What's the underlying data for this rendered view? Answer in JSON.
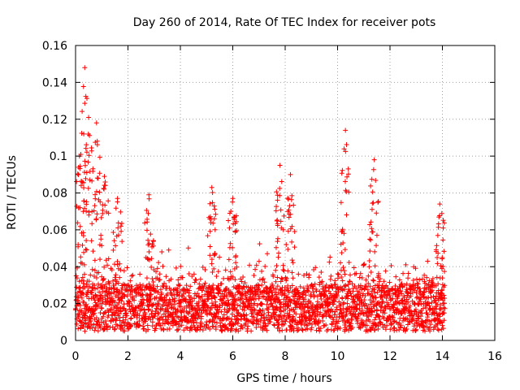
{
  "chart_data": {
    "type": "scatter",
    "title": "Day 260 of 2014, Rate Of TEC Index for receiver pots",
    "xlabel": "GPS time / hours",
    "ylabel": "ROTI / TECUs",
    "xlim": [
      0,
      16
    ],
    "ylim": [
      0,
      0.16
    ],
    "xticks": [
      0,
      2,
      4,
      6,
      8,
      10,
      12,
      14,
      16
    ],
    "yticks": [
      0,
      0.02,
      0.04,
      0.06,
      0.08,
      0.1,
      0.12,
      0.14,
      0.16
    ],
    "xtick_labels": [
      "0",
      "2",
      "4",
      "6",
      "8",
      "10",
      "12",
      "14",
      "16"
    ],
    "ytick_labels": [
      "0",
      "0.02",
      "0.04",
      "0.06",
      "0.08",
      "0.1",
      "0.12",
      "0.14",
      "0.16"
    ],
    "grid": true,
    "marker": "+",
    "color": "#ff0000",
    "series": [
      {
        "name": "ROTI",
        "x_range": [
          0.0,
          14.1
        ],
        "baseline_band": [
          0.005,
          0.03
        ],
        "peaks": [
          {
            "x": 0.35,
            "y": 0.148
          },
          {
            "x": 0.5,
            "y": 0.121
          },
          {
            "x": 0.8,
            "y": 0.118
          },
          {
            "x": 0.15,
            "y": 0.1
          },
          {
            "x": 1.1,
            "y": 0.089
          },
          {
            "x": 1.6,
            "y": 0.077
          },
          {
            "x": 2.8,
            "y": 0.079
          },
          {
            "x": 5.2,
            "y": 0.083
          },
          {
            "x": 6.0,
            "y": 0.077
          },
          {
            "x": 7.8,
            "y": 0.095
          },
          {
            "x": 8.2,
            "y": 0.09
          },
          {
            "x": 10.3,
            "y": 0.114
          },
          {
            "x": 11.4,
            "y": 0.098
          },
          {
            "x": 13.9,
            "y": 0.074
          }
        ]
      }
    ]
  }
}
